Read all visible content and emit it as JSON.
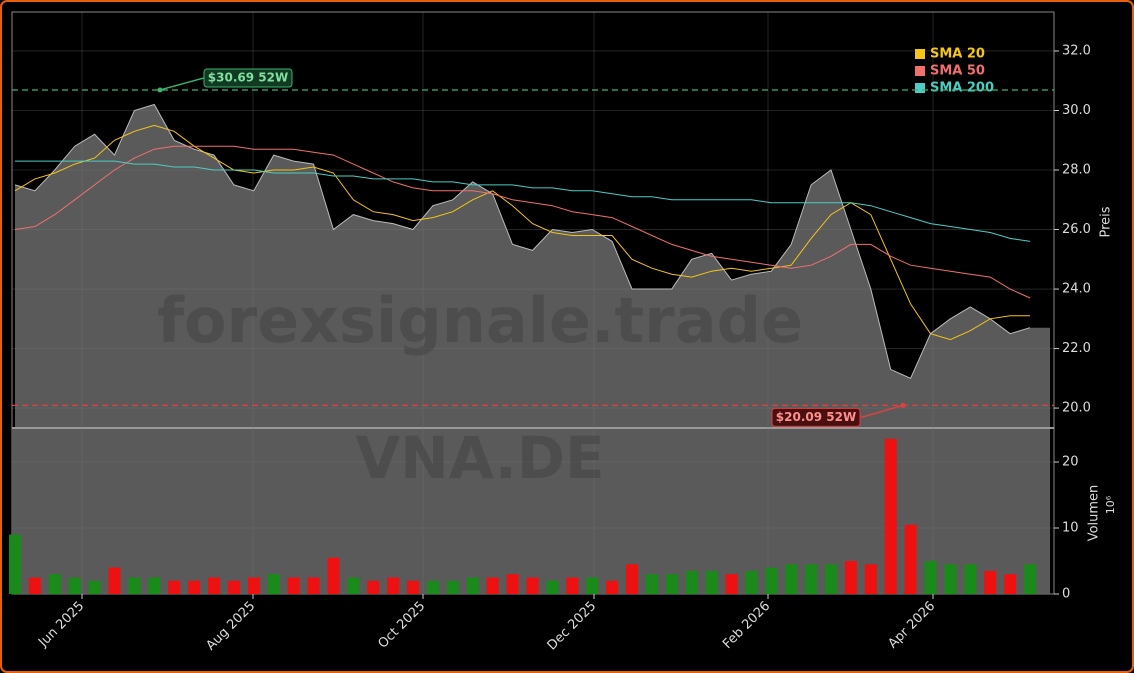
{
  "chart_data": {
    "type": "stock",
    "watermark": "forexsignale.trade",
    "symbol": "VNA.DE",
    "xtick_labels": [
      "Jun 2025",
      "Aug 2025",
      "Oct 2025",
      "Dec 2025",
      "Feb 2026",
      "Apr 2026"
    ],
    "ylabel": "Preis",
    "y2label": "Volumen",
    "y2unit": "10⁶",
    "ylim": [
      19.33,
      33.31
    ],
    "yticks": [
      {
        "value": 20,
        "label": "20.0"
      },
      {
        "value": 22,
        "label": "22.0"
      },
      {
        "value": 24,
        "label": "24.0"
      },
      {
        "value": 26,
        "label": "26.0"
      },
      {
        "value": 28,
        "label": "28.0"
      },
      {
        "value": 30,
        "label": "30.0"
      },
      {
        "value": 32,
        "label": "32.0"
      }
    ],
    "y2lim": [
      0,
      25.15
    ],
    "y2ticks": [
      0,
      10,
      20
    ],
    "grid": true,
    "legend": "upper right",
    "price": {
      "color": "#5a5a5a",
      "line_color": "#bbbbbb",
      "values": [
        27.5,
        27.3,
        28.0,
        28.8,
        29.2,
        28.5,
        30.0,
        30.2,
        29.0,
        28.7,
        28.5,
        27.5,
        27.3,
        28.5,
        28.3,
        28.2,
        26.0,
        26.5,
        26.3,
        26.2,
        26.0,
        26.8,
        27.0,
        27.6,
        27.2,
        25.5,
        25.3,
        26.0,
        25.9,
        26.0,
        25.6,
        24.0,
        24.0,
        24.0,
        25.0,
        25.2,
        24.3,
        24.5,
        24.6,
        25.5,
        27.5,
        28.0,
        26.0,
        24.0,
        21.3,
        21.0,
        22.5,
        23.0,
        23.4,
        23.0,
        22.5,
        22.7
      ]
    },
    "series": [
      {
        "name": "SMA 20",
        "color": "#f5c518",
        "values": [
          27.3,
          27.7,
          27.9,
          28.2,
          28.4,
          29.0,
          29.3,
          29.5,
          29.3,
          28.8,
          28.4,
          28.0,
          27.9,
          28.0,
          28.0,
          28.1,
          27.9,
          27.0,
          26.6,
          26.5,
          26.3,
          26.4,
          26.6,
          27.0,
          27.3,
          26.8,
          26.2,
          25.9,
          25.8,
          25.8,
          25.8,
          25.0,
          24.7,
          24.5,
          24.4,
          24.6,
          24.7,
          24.6,
          24.7,
          24.8,
          25.7,
          26.5,
          26.9,
          26.5,
          25.0,
          23.5,
          22.5,
          22.3,
          22.6,
          23.0,
          23.1,
          23.1
        ]
      },
      {
        "name": "SMA 50",
        "color": "#f07070",
        "values": [
          26.0,
          26.1,
          26.5,
          27.0,
          27.5,
          28.0,
          28.4,
          28.7,
          28.8,
          28.8,
          28.8,
          28.8,
          28.7,
          28.7,
          28.7,
          28.6,
          28.5,
          28.2,
          27.9,
          27.6,
          27.4,
          27.3,
          27.3,
          27.3,
          27.2,
          27.0,
          26.9,
          26.8,
          26.6,
          26.5,
          26.4,
          26.1,
          25.8,
          25.5,
          25.3,
          25.1,
          25.0,
          24.9,
          24.8,
          24.7,
          24.8,
          25.1,
          25.5,
          25.5,
          25.1,
          24.8,
          24.7,
          24.6,
          24.5,
          24.4,
          24.0,
          23.7
        ]
      },
      {
        "name": "SMA 200",
        "color": "#4ecdc4",
        "values": [
          28.3,
          28.3,
          28.3,
          28.3,
          28.3,
          28.3,
          28.2,
          28.2,
          28.1,
          28.1,
          28.0,
          28.0,
          28.0,
          27.9,
          27.9,
          27.9,
          27.8,
          27.8,
          27.7,
          27.7,
          27.7,
          27.6,
          27.6,
          27.5,
          27.5,
          27.5,
          27.4,
          27.4,
          27.3,
          27.3,
          27.2,
          27.1,
          27.1,
          27.0,
          27.0,
          27.0,
          27.0,
          27.0,
          26.9,
          26.9,
          26.9,
          26.9,
          26.9,
          26.8,
          26.6,
          26.4,
          26.2,
          26.1,
          26.0,
          25.9,
          25.7,
          25.6
        ]
      }
    ],
    "volume": {
      "up_color": "#1a8a1a",
      "down_color": "#ee1111",
      "values": [
        9,
        2.5,
        3,
        2.5,
        2,
        4,
        2.5,
        2.5,
        2,
        2,
        2.5,
        2,
        2.5,
        3,
        2.5,
        2.5,
        5.5,
        2.5,
        2,
        2.5,
        2,
        2,
        2,
        2.5,
        2.5,
        3,
        2.5,
        2,
        2.5,
        2.5,
        2,
        4.5,
        3,
        3,
        3.5,
        3.5,
        3,
        3.5,
        4,
        4.5,
        4.5,
        4.5,
        5,
        4.5,
        23.5,
        10.5,
        5,
        4.5,
        4.5,
        3.5,
        3,
        4.5
      ]
    },
    "hlines": [
      {
        "value": 30.69,
        "label": "$30.69 52W",
        "color": "#3cb371"
      },
      {
        "value": 20.09,
        "label": "$20.09 52W",
        "color": "#e04040"
      }
    ]
  }
}
